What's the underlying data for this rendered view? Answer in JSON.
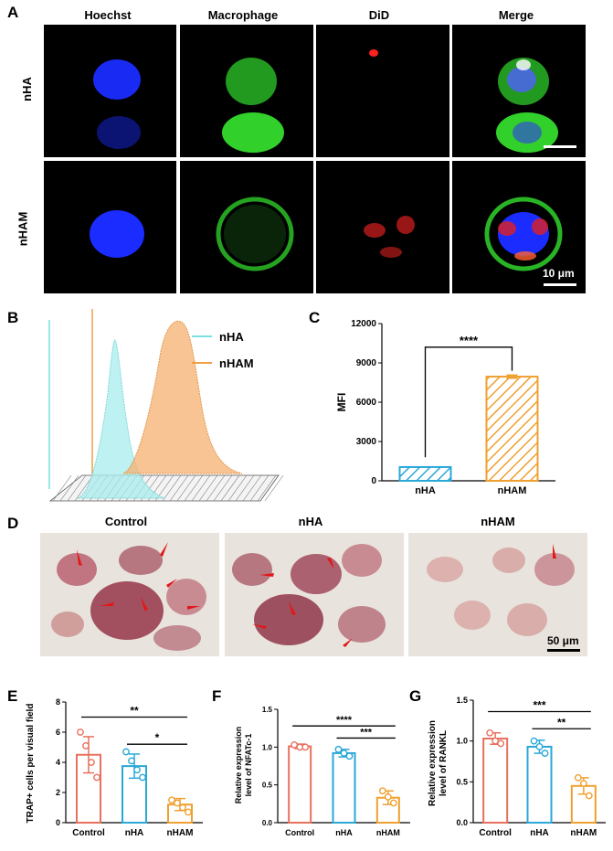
{
  "panelA": {
    "letter": "A",
    "columns": [
      "Hoechst",
      "Macrophage",
      "DiD",
      "Merge"
    ],
    "rows": [
      "nHA",
      "nHAM"
    ],
    "scalebar": "10 μm"
  },
  "panelB": {
    "letter": "B",
    "legend": [
      {
        "name": "nHA",
        "color": "#a8ecec"
      },
      {
        "name": "nHAM",
        "color": "#f5b070"
      }
    ]
  },
  "panelC": {
    "letter": "C",
    "significance": "****",
    "chart_data": {
      "type": "bar",
      "categories": [
        "nHA",
        "nHAM"
      ],
      "values": [
        1050,
        7950
      ],
      "errors": [
        0,
        120
      ],
      "ylabel": "MFI",
      "ylim": [
        0,
        12000
      ],
      "yticks": [
        "0",
        "3000",
        "6000",
        "9000",
        "12000"
      ],
      "colors": [
        "#2aa8d8",
        "#f0a030"
      ]
    }
  },
  "panelD": {
    "letter": "D",
    "columns": [
      "Control",
      "nHA",
      "nHAM"
    ],
    "scalebar": "50 μm"
  },
  "panelE": {
    "letter": "E",
    "sig1": "**",
    "sig2": "*",
    "chart_data": {
      "type": "bar",
      "categories": [
        "Control",
        "nHA",
        "nHAM"
      ],
      "values": [
        4.5,
        3.75,
        1.2
      ],
      "errors": [
        1.2,
        0.8,
        0.4
      ],
      "points": [
        [
          6.0,
          5.1,
          4.0,
          3.0
        ],
        [
          4.7,
          4.1,
          3.5,
          3.0
        ],
        [
          1.5,
          1.3,
          1.0,
          0.7
        ]
      ],
      "ylabel": "TRAP+ cells per visual field",
      "ylim": [
        0,
        8
      ],
      "yticks": [
        "0",
        "2",
        "4",
        "6",
        "8"
      ],
      "colors": [
        "#e8705e",
        "#2aa8d8",
        "#f0a030"
      ]
    }
  },
  "panelF": {
    "letter": "F",
    "sig1": "****",
    "sig2": "***",
    "chart_data": {
      "type": "bar",
      "categories": [
        "Control",
        "nHA",
        "nHAM"
      ],
      "values": [
        1.01,
        0.92,
        0.33
      ],
      "errors": [
        0.03,
        0.05,
        0.09
      ],
      "points": [
        [
          1.03,
          1.0,
          1.0
        ],
        [
          0.97,
          0.92,
          0.88
        ],
        [
          0.42,
          0.34,
          0.26
        ]
      ],
      "ylabel1": "Relative expression",
      "ylabel2": "level of NFATc-1",
      "ylim": [
        0,
        1.5
      ],
      "yticks": [
        "0.0",
        "0.5",
        "1.0",
        "1.5"
      ],
      "colors": [
        "#e8705e",
        "#2aa8d8",
        "#f0a030"
      ]
    }
  },
  "panelG": {
    "letter": "G",
    "sig1": "***",
    "sig2": "**",
    "chart_data": {
      "type": "bar",
      "categories": [
        "Control",
        "nHA",
        "nHAM"
      ],
      "values": [
        1.03,
        0.93,
        0.45
      ],
      "errors": [
        0.07,
        0.08,
        0.1
      ],
      "points": [
        [
          1.1,
          1.0,
          0.97
        ],
        [
          1.0,
          0.93,
          0.85
        ],
        [
          0.55,
          0.48,
          0.33
        ]
      ],
      "ylabel1": "Relative expression",
      "ylabel2": "level of RANKL",
      "ylim": [
        0,
        1.5
      ],
      "yticks": [
        "0.0",
        "0.5",
        "1.0",
        "1.5"
      ],
      "colors": [
        "#e8705e",
        "#2aa8d8",
        "#f0a030"
      ]
    }
  }
}
